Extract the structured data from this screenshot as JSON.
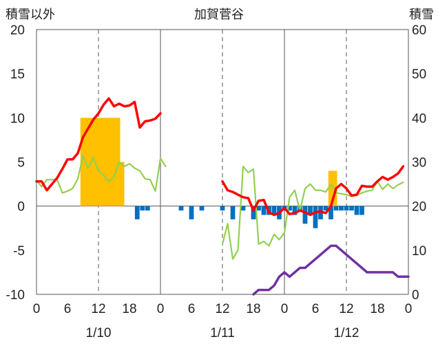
{
  "chart_data": {
    "type": "line",
    "title": "加賀菅谷",
    "left_axis_label": "積雪以外",
    "right_axis_label": "積雪",
    "ylim_left": [
      -10,
      20
    ],
    "yticks_left": [
      -10,
      -5,
      0,
      5,
      10,
      15,
      20
    ],
    "ylim_right": [
      0,
      60
    ],
    "yticks_right": [
      0,
      10,
      20,
      30,
      40,
      50,
      60
    ],
    "xlim_hours": [
      0,
      72
    ],
    "xtick_hours": [
      0,
      6,
      12,
      18,
      24,
      30,
      36,
      42,
      48,
      54,
      60,
      66,
      72
    ],
    "xtick_labels": [
      "0",
      "6",
      "12",
      "18",
      "0",
      "6",
      "12",
      "18",
      "0",
      "6",
      "12",
      "18",
      "0"
    ],
    "day_labels": [
      {
        "hour": 12,
        "label": "1/10"
      },
      {
        "hour": 36,
        "label": "1/11"
      },
      {
        "hour": 60,
        "label": "1/12"
      }
    ],
    "grid": "dashed verticals at 12h; solid verticals at day boundaries",
    "series": [
      {
        "role": "snowfall bars (left axis)",
        "color": "#FFC000",
        "bars": [
          {
            "from": 8.5,
            "to": 16.2,
            "value": 10
          },
          {
            "from": 16.2,
            "to": 17.0,
            "value": 5
          },
          {
            "from": 56.5,
            "to": 58.2,
            "value": 4
          }
        ]
      },
      {
        "role": "negative bars (left axis)",
        "color": "#0070C0",
        "bars": [
          {
            "hour": 19.5,
            "value": -1.5
          },
          {
            "hour": 20.5,
            "value": -0.5
          },
          {
            "hour": 21.5,
            "value": -0.5
          },
          {
            "hour": 28.0,
            "value": -0.5
          },
          {
            "hour": 30.0,
            "value": -1.5
          },
          {
            "hour": 32.0,
            "value": -0.5
          },
          {
            "hour": 36.0,
            "value": -0.5
          },
          {
            "hour": 38.0,
            "value": -1.5
          },
          {
            "hour": 40.0,
            "value": -0.5
          },
          {
            "hour": 42.0,
            "value": -1.5
          },
          {
            "hour": 43.0,
            "value": -0.5
          },
          {
            "hour": 44.0,
            "value": -1.0
          },
          {
            "hour": 45.0,
            "value": -1.0
          },
          {
            "hour": 46.0,
            "value": -1.0
          },
          {
            "hour": 47.0,
            "value": -1.5
          },
          {
            "hour": 48.0,
            "value": -0.5
          },
          {
            "hour": 49.0,
            "value": -0.5
          },
          {
            "hour": 50.0,
            "value": -1.0
          },
          {
            "hour": 51.0,
            "value": -0.5
          },
          {
            "hour": 52.0,
            "value": -2.0
          },
          {
            "hour": 53.0,
            "value": -1.0
          },
          {
            "hour": 54.0,
            "value": -2.5
          },
          {
            "hour": 55.0,
            "value": -1.5
          },
          {
            "hour": 56.0,
            "value": -0.5
          },
          {
            "hour": 57.0,
            "value": -1.5
          },
          {
            "hour": 58.0,
            "value": -0.5
          },
          {
            "hour": 59.0,
            "value": -0.5
          },
          {
            "hour": 60.0,
            "value": -0.5
          },
          {
            "hour": 61.0,
            "value": -0.5
          },
          {
            "hour": 62.0,
            "value": -1.0
          },
          {
            "hour": 63.0,
            "value": -1.0
          }
        ]
      },
      {
        "role": "red line (left axis)",
        "color": "#FF0000",
        "points": [
          [
            0,
            2.8
          ],
          [
            1,
            2.8
          ],
          [
            2,
            1.8
          ],
          [
            3,
            2.5
          ],
          [
            4,
            3.2
          ],
          [
            5,
            4.2
          ],
          [
            6,
            5.3
          ],
          [
            7,
            5.3
          ],
          [
            8,
            6.0
          ],
          [
            9,
            7.8
          ],
          [
            10,
            8.8
          ],
          [
            11,
            9.8
          ],
          [
            12,
            10.5
          ],
          [
            13,
            11.5
          ],
          [
            14,
            12.2
          ],
          [
            15,
            11.3
          ],
          [
            16,
            11.6
          ],
          [
            17,
            11.3
          ],
          [
            18,
            11.4
          ],
          [
            19,
            11.8
          ],
          [
            20,
            8.9
          ],
          [
            21,
            9.6
          ],
          [
            22,
            9.7
          ],
          [
            23,
            9.9
          ],
          [
            24,
            10.5
          ],
          [
            36,
            2.8
          ],
          [
            37,
            1.8
          ],
          [
            38,
            1.6
          ],
          [
            39,
            1.3
          ],
          [
            40,
            1.0
          ],
          [
            41,
            0.9
          ],
          [
            42,
            -0.5
          ],
          [
            43,
            0.6
          ],
          [
            44,
            0.7
          ],
          [
            45,
            -0.7
          ],
          [
            46,
            -1.0
          ],
          [
            47,
            -0.8
          ],
          [
            48,
            -0.2
          ],
          [
            49,
            -0.9
          ],
          [
            50,
            -0.8
          ],
          [
            51,
            -0.5
          ],
          [
            52,
            -0.7
          ],
          [
            53,
            -1.0
          ],
          [
            54,
            -0.7
          ],
          [
            55,
            -0.6
          ],
          [
            56,
            -0.8
          ],
          [
            57,
            0.0
          ],
          [
            58,
            2.0
          ],
          [
            59,
            2.5
          ],
          [
            60,
            2.0
          ],
          [
            61,
            1.2
          ],
          [
            62,
            1.3
          ],
          [
            63,
            2.3
          ],
          [
            64,
            2.2
          ],
          [
            65,
            2.2
          ],
          [
            66,
            2.8
          ],
          [
            67,
            3.3
          ],
          [
            68,
            3.0
          ],
          [
            69,
            3.3
          ],
          [
            70,
            3.7
          ],
          [
            71,
            4.5
          ]
        ]
      },
      {
        "role": "green line (left axis)",
        "color": "#92D050",
        "points": [
          [
            0,
            2.9
          ],
          [
            1,
            2.2
          ],
          [
            2,
            3.0
          ],
          [
            3,
            3.0
          ],
          [
            4,
            3.0
          ],
          [
            5,
            1.5
          ],
          [
            6,
            1.7
          ],
          [
            7,
            2.0
          ],
          [
            8,
            3.1
          ],
          [
            9,
            5.7
          ],
          [
            10,
            4.3
          ],
          [
            11,
            5.5
          ],
          [
            12,
            4.0
          ],
          [
            13,
            3.5
          ],
          [
            14,
            2.8
          ],
          [
            15,
            3.3
          ],
          [
            16,
            5.0
          ],
          [
            17,
            4.5
          ],
          [
            18,
            4.8
          ],
          [
            19,
            4.3
          ],
          [
            20,
            4.0
          ],
          [
            21,
            3.1
          ],
          [
            22,
            3.0
          ],
          [
            23,
            1.7
          ],
          [
            24,
            5.4
          ],
          [
            25,
            4.5
          ],
          [
            36,
            -4.3
          ],
          [
            37,
            -2.0
          ],
          [
            38,
            -6.0
          ],
          [
            39,
            -5.0
          ],
          [
            40,
            4.5
          ],
          [
            41,
            3.8
          ],
          [
            42,
            4.2
          ],
          [
            43,
            -4.3
          ],
          [
            44,
            -4.0
          ],
          [
            45,
            -4.5
          ],
          [
            46,
            -3.2
          ],
          [
            47,
            -3.8
          ],
          [
            48,
            -3.0
          ],
          [
            49,
            1.0
          ],
          [
            50,
            1.8
          ],
          [
            51,
            -0.5
          ],
          [
            52,
            2.0
          ],
          [
            53,
            2.5
          ],
          [
            54,
            1.8
          ],
          [
            55,
            1.8
          ],
          [
            56,
            1.6
          ],
          [
            57,
            2.5
          ],
          [
            58,
            1.5
          ],
          [
            59,
            1.4
          ],
          [
            60,
            1.3
          ],
          [
            61,
            1.1
          ],
          [
            62,
            1.2
          ],
          [
            63,
            1.5
          ],
          [
            64,
            1.7
          ],
          [
            65,
            1.8
          ],
          [
            66,
            2.8
          ],
          [
            67,
            1.9
          ],
          [
            68,
            2.5
          ],
          [
            69,
            2.0
          ],
          [
            70,
            2.4
          ],
          [
            71,
            2.7
          ]
        ]
      },
      {
        "role": "purple line (right axis, 積雪)",
        "color": "#7030A0",
        "points": [
          [
            0,
            0
          ],
          [
            8,
            0
          ],
          [
            16,
            0
          ],
          [
            24,
            0
          ],
          [
            30,
            0
          ],
          [
            36,
            0
          ],
          [
            42,
            0
          ],
          [
            43,
            1
          ],
          [
            44,
            1
          ],
          [
            45,
            1
          ],
          [
            46,
            2
          ],
          [
            47,
            4
          ],
          [
            48,
            5
          ],
          [
            49,
            4
          ],
          [
            50,
            5
          ],
          [
            51,
            6
          ],
          [
            52,
            6
          ],
          [
            53,
            7
          ],
          [
            54,
            8
          ],
          [
            55,
            9
          ],
          [
            56,
            10
          ],
          [
            57,
            11
          ],
          [
            58,
            11
          ],
          [
            59,
            10
          ],
          [
            60,
            9
          ],
          [
            61,
            8
          ],
          [
            62,
            7
          ],
          [
            63,
            6
          ],
          [
            64,
            5
          ],
          [
            65,
            5
          ],
          [
            66,
            5
          ],
          [
            67,
            5
          ],
          [
            68,
            5
          ],
          [
            69,
            5
          ],
          [
            70,
            4
          ],
          [
            71,
            4
          ],
          [
            72,
            4
          ]
        ]
      }
    ]
  }
}
